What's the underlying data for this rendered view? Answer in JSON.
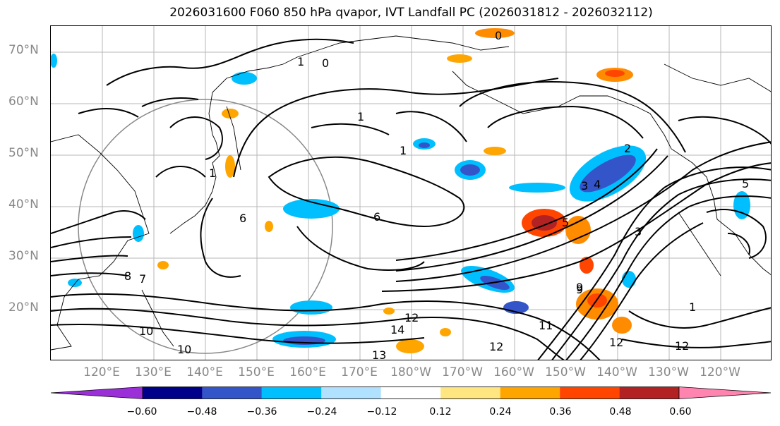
{
  "title": "2026031600 F060 850 hPa qvapor, IVT Landfall PC (2026031812 - 2026032112)",
  "lat_labels": [
    "70°N",
    "60°N",
    "50°N",
    "40°N",
    "30°N",
    "20°N"
  ],
  "lon_labels": [
    "120°E",
    "130°E",
    "140°E",
    "150°E",
    "160°E",
    "170°E",
    "180°W",
    "170°W",
    "160°W",
    "150°W",
    "140°W",
    "130°W",
    "120°W"
  ],
  "colorbar": {
    "ticks": [
      "−0.60",
      "−0.48",
      "−0.36",
      "−0.24",
      "−0.12",
      "0.12",
      "0.24",
      "0.36",
      "0.48",
      "0.60"
    ],
    "colors": [
      "#9b30d9",
      "#00008b",
      "#3455c9",
      "#00bfff",
      "#b0e2ff",
      "#ffffff",
      "#ffe680",
      "#ffa500",
      "#ff4500",
      "#b22222",
      "#ff85b0"
    ]
  },
  "contour_labels": [
    "0",
    "0",
    "1",
    "1",
    "1",
    "2",
    "3",
    "4",
    "5",
    "6",
    "1",
    "3",
    "8",
    "7",
    "9",
    "10",
    "10",
    "12",
    "13",
    "14",
    "12",
    "12",
    "11",
    "12",
    "1",
    "5",
    "6",
    "9"
  ]
}
